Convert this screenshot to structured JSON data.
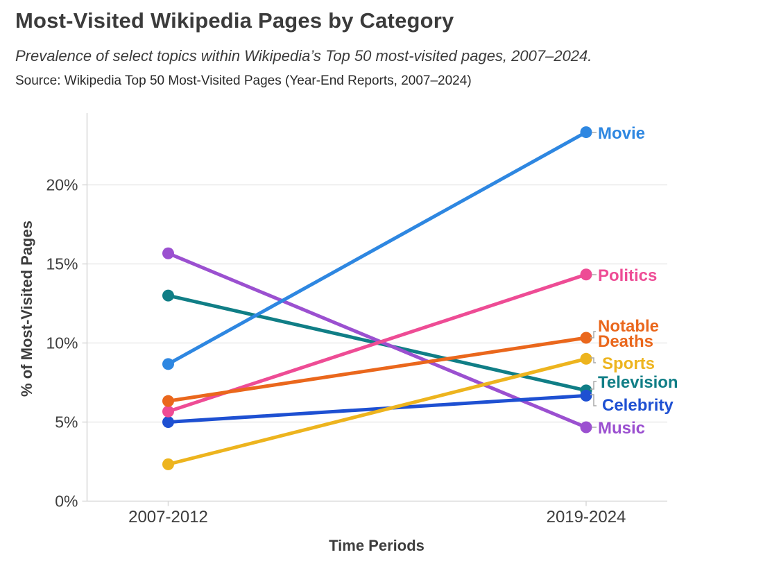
{
  "header": {
    "title": "Most-Visited Wikipedia Pages by Category",
    "subtitle": "Prevalence of select topics within Wikipedia’s Top 50 most-visited pages, 2007–2024.",
    "source": "Source: Wikipedia Top 50 Most-Visited Pages (Year-End Reports, 2007–2024)"
  },
  "chart_data": {
    "type": "line",
    "variant": "slope",
    "title": "Most-Visited Wikipedia Pages by Category",
    "xlabel": "Time Periods",
    "ylabel": "% of Most-Visited Pages",
    "categories": [
      "2007-2012",
      "2019-2024"
    ],
    "ylim": [
      0,
      24.5
    ],
    "yticks": [
      0,
      5,
      10,
      15,
      20
    ],
    "ytick_labels": [
      "0%",
      "5%",
      "10%",
      "15%",
      "20%"
    ],
    "grid": true,
    "legend_position": "right-end-labels",
    "series": [
      {
        "name": "Movie",
        "color": "#2E87E1",
        "values": [
          8.67,
          23.33
        ],
        "label_lines": [
          "Movie"
        ]
      },
      {
        "name": "Politics",
        "color": "#EE4C95",
        "values": [
          5.67,
          14.33
        ],
        "label_lines": [
          "Politics"
        ]
      },
      {
        "name": "Notable Deaths",
        "color": "#EA671C",
        "values": [
          6.33,
          10.33
        ],
        "label_lines": [
          "Notable",
          "Deaths"
        ]
      },
      {
        "name": "Sports",
        "color": "#EDB41E",
        "values": [
          2.33,
          9.0
        ],
        "label_lines": [
          "Sports"
        ]
      },
      {
        "name": "Television",
        "color": "#107E86",
        "values": [
          13.0,
          7.0
        ],
        "label_lines": [
          "Television"
        ]
      },
      {
        "name": "Celebrity",
        "color": "#1E50D2",
        "values": [
          5.0,
          6.67
        ],
        "label_lines": [
          "Celebrity"
        ]
      },
      {
        "name": "Music",
        "color": "#9B50D0",
        "values": [
          15.67,
          4.67
        ],
        "label_lines": [
          "Music"
        ]
      }
    ]
  }
}
